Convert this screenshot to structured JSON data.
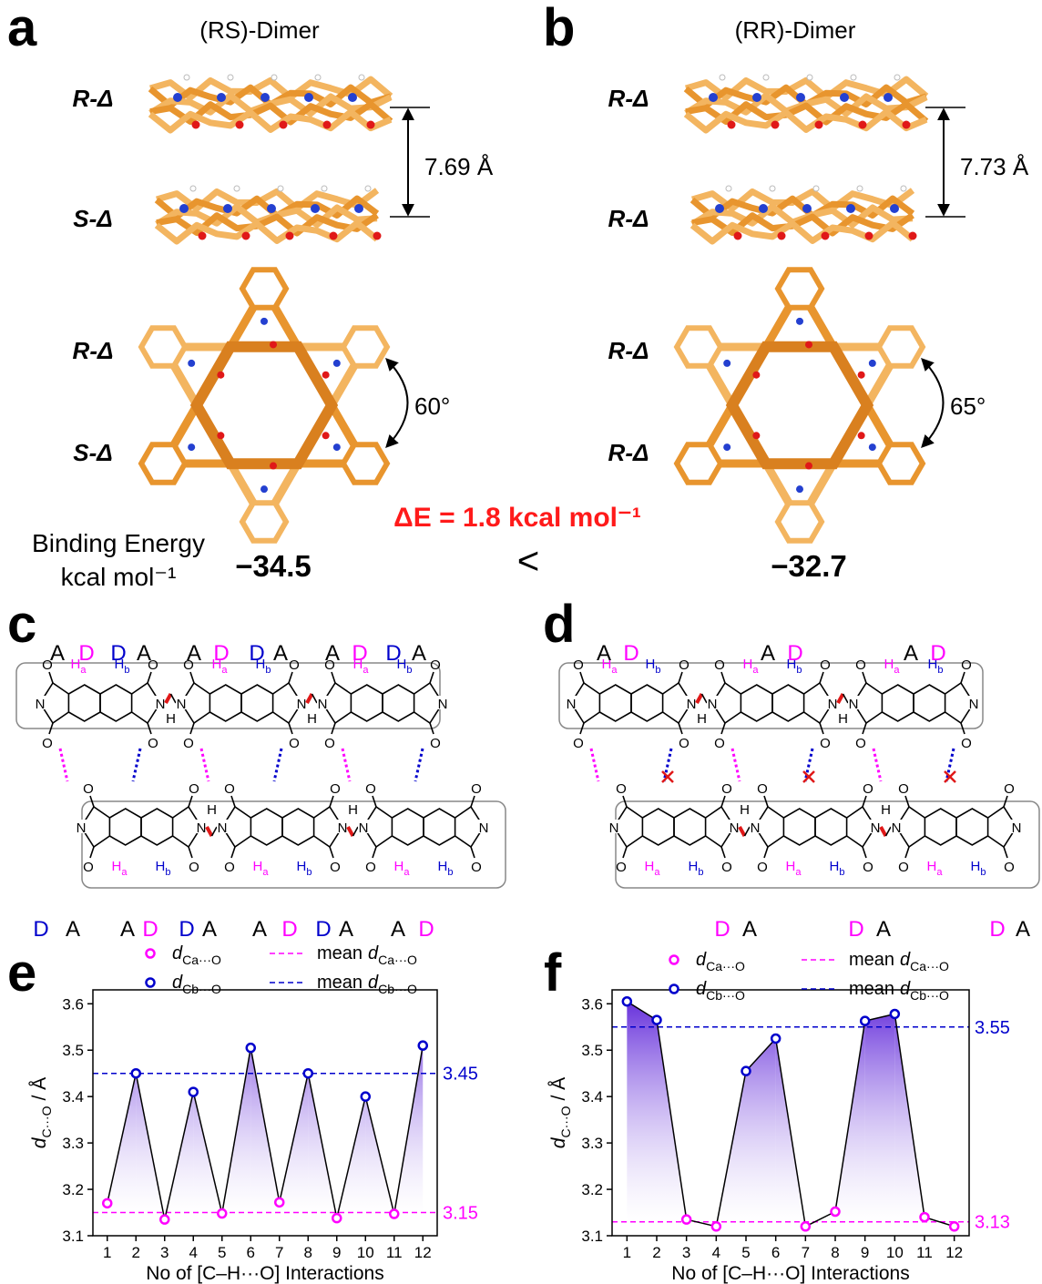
{
  "panels": {
    "a": {
      "letter": "a",
      "title": "(RS)-Dimer",
      "layers": [
        "R-Δ",
        "S-Δ",
        "R-Δ",
        "S-Δ"
      ],
      "distance": "7.69 Å",
      "angle": "60°",
      "energy": "−34.5"
    },
    "b": {
      "letter": "b",
      "title": "(RR)-Dimer",
      "layers": [
        "R-Δ",
        "R-Δ",
        "R-Δ",
        "R-Δ"
      ],
      "distance": "7.73 Å",
      "angle": "65°",
      "energy": "−32.7"
    },
    "c": {
      "letter": "c",
      "top_labels": [
        {
          "text": "A",
          "color": "#000000"
        },
        {
          "text": "D",
          "color": "#ff00ff"
        },
        {
          "text": "D",
          "color": "#0000cc"
        },
        {
          "text": "A",
          "color": "#000000"
        },
        {
          "text": "A",
          "color": "#000000"
        },
        {
          "text": "D",
          "color": "#ff00ff"
        },
        {
          "text": "D",
          "color": "#0000cc"
        },
        {
          "text": "A",
          "color": "#000000"
        },
        {
          "text": "A",
          "color": "#000000"
        },
        {
          "text": "D",
          "color": "#ff00ff"
        },
        {
          "text": "D",
          "color": "#0000cc"
        },
        {
          "text": "A",
          "color": "#000000"
        }
      ],
      "bottom_labels": [
        {
          "text": "D",
          "color": "#0000cc"
        },
        {
          "text": "A",
          "color": "#000000"
        },
        {
          "text": "A",
          "color": "#000000"
        },
        {
          "text": "D",
          "color": "#ff00ff"
        },
        {
          "text": "D",
          "color": "#0000cc"
        },
        {
          "text": "A",
          "color": "#000000"
        },
        {
          "text": "A",
          "color": "#000000"
        },
        {
          "text": "D",
          "color": "#ff00ff"
        },
        {
          "text": "D",
          "color": "#0000cc"
        },
        {
          "text": "A",
          "color": "#000000"
        },
        {
          "text": "A",
          "color": "#000000"
        },
        {
          "text": "D",
          "color": "#ff00ff"
        }
      ]
    },
    "d": {
      "letter": "d",
      "top_labels": [
        {
          "text": "A",
          "color": "#000000"
        },
        {
          "text": "D",
          "color": "#ff00ff"
        },
        {
          "text": "A",
          "color": "#000000"
        },
        {
          "text": "D",
          "color": "#ff00ff"
        },
        {
          "text": "A",
          "color": "#000000"
        },
        {
          "text": "D",
          "color": "#ff00ff"
        }
      ],
      "bottom_labels": [
        {
          "text": "D",
          "color": "#ff00ff"
        },
        {
          "text": "A",
          "color": "#000000"
        },
        {
          "text": "D",
          "color": "#ff00ff"
        },
        {
          "text": "A",
          "color": "#000000"
        },
        {
          "text": "D",
          "color": "#ff00ff"
        },
        {
          "text": "A",
          "color": "#000000"
        }
      ]
    },
    "e": {
      "letter": "e"
    },
    "f": {
      "letter": "f"
    }
  },
  "binding_energy_label": "Binding Energy",
  "binding_energy_unit": "kcal mol⁻¹",
  "delta_e": "ΔE = 1.8 kcal mol⁻¹",
  "comparison": "<",
  "atoms": {
    "O": "O",
    "N": "N",
    "H": "H",
    "sub_a": "a",
    "sub_b": "b"
  },
  "chart_data": [
    {
      "type": "line",
      "x": [
        1,
        2,
        3,
        4,
        5,
        6,
        7,
        8,
        9,
        10,
        11,
        12
      ],
      "xlim": [
        0.5,
        12.5
      ],
      "xticks": [
        1,
        2,
        3,
        4,
        5,
        6,
        7,
        8,
        9,
        10,
        11,
        12
      ],
      "ylim": [
        3.1,
        3.63
      ],
      "yticks": [
        3.1,
        3.2,
        3.3,
        3.4,
        3.5,
        3.6
      ],
      "xlabel": "No of [C–H···O] Interactions",
      "ylabel": {
        "symbol": "d",
        "sub": "C···O",
        "unit": "/ Å"
      },
      "line_color": "#000000",
      "area_color": "#5a1fd8",
      "series": [
        {
          "symbol": "d",
          "sub": "Ca···O",
          "color": "#ff00ff",
          "values": [
            3.17,
            null,
            3.135,
            null,
            3.148,
            null,
            3.172,
            null,
            3.138,
            null,
            3.147,
            null
          ]
        },
        {
          "symbol": "d",
          "sub": "Cb···O",
          "color": "#0000cc",
          "values": [
            null,
            3.45,
            null,
            3.41,
            null,
            3.505,
            null,
            3.45,
            null,
            3.4,
            null,
            3.51
          ]
        }
      ],
      "mean_lines": [
        {
          "prefix": "mean",
          "symbol": "d",
          "sub": "Ca···O",
          "color": "#ff00ff",
          "value": 3.15
        },
        {
          "prefix": "mean",
          "symbol": "d",
          "sub": "Cb···O",
          "color": "#0000cc",
          "value": 3.45
        }
      ]
    },
    {
      "type": "line",
      "x": [
        1,
        2,
        3,
        4,
        5,
        6,
        7,
        8,
        9,
        10,
        11,
        12
      ],
      "xlim": [
        0.5,
        12.5
      ],
      "xticks": [
        1,
        2,
        3,
        4,
        5,
        6,
        7,
        8,
        9,
        10,
        11,
        12
      ],
      "ylim": [
        3.1,
        3.63
      ],
      "yticks": [
        3.1,
        3.2,
        3.3,
        3.4,
        3.5,
        3.6
      ],
      "xlabel": "No of [C–H···O] Interactions",
      "ylabel": {
        "symbol": "d",
        "sub": "C···O",
        "unit": "/ Å"
      },
      "line_color": "#000000",
      "area_color": "#5a1fd8",
      "series": [
        {
          "symbol": "d",
          "sub": "Ca···O",
          "color": "#ff00ff",
          "values": [
            null,
            null,
            3.135,
            3.12,
            null,
            null,
            3.12,
            3.152,
            null,
            null,
            3.14,
            3.12
          ]
        },
        {
          "symbol": "d",
          "sub": "Cb···O",
          "color": "#0000cc",
          "values": [
            3.605,
            3.565,
            null,
            null,
            3.455,
            3.525,
            null,
            null,
            3.563,
            3.578,
            null,
            null
          ]
        }
      ],
      "mean_lines": [
        {
          "prefix": "mean",
          "symbol": "d",
          "sub": "Ca···O",
          "color": "#ff00ff",
          "value": 3.13
        },
        {
          "prefix": "mean",
          "symbol": "d",
          "sub": "Cb···O",
          "color": "#0000cc",
          "value": 3.55
        }
      ]
    }
  ]
}
